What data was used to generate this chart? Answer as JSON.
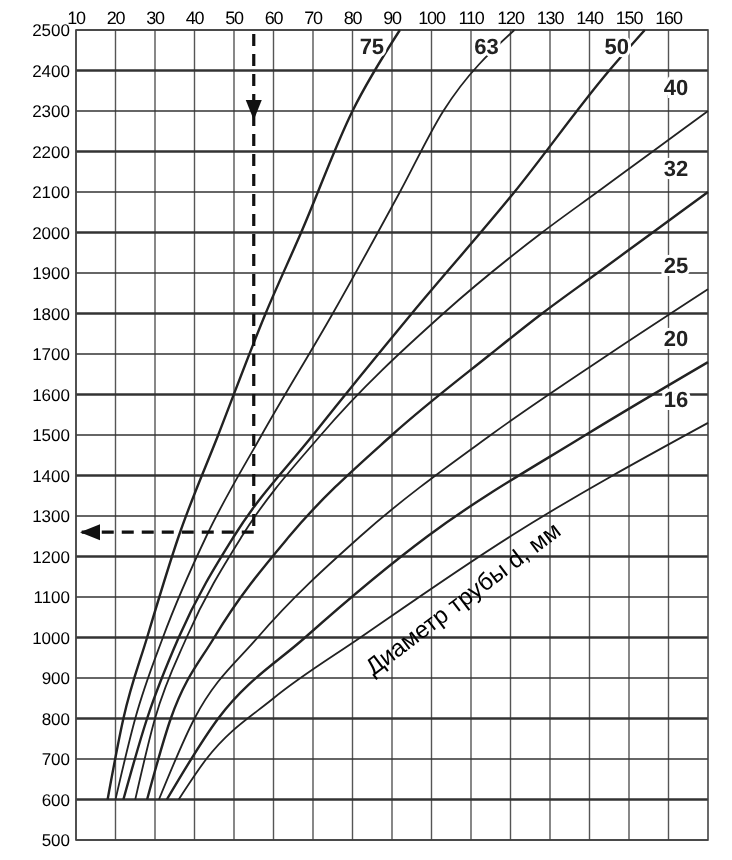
{
  "chart_data": {
    "type": "line",
    "annotations": [
      "Диаметр трубы d, мм"
    ],
    "xlim": [
      10,
      170
    ],
    "xticks": [
      10,
      20,
      30,
      40,
      50,
      60,
      70,
      80,
      90,
      100,
      110,
      120,
      130,
      140,
      150,
      160
    ],
    "ylim": [
      500,
      2500
    ],
    "yticks": [
      500,
      600,
      700,
      800,
      900,
      1000,
      1100,
      1200,
      1300,
      1400,
      1500,
      1600,
      1700,
      1800,
      1900,
      2000,
      2100,
      2200,
      2300,
      2400,
      2500
    ],
    "grid": true,
    "marker": "none",
    "ref_lines": [
      {
        "axis": "x",
        "value": 55,
        "line_style": "dashed"
      },
      {
        "axis": "y",
        "value": 1260,
        "line_style": "dashed"
      }
    ],
    "series": [
      {
        "name": "75",
        "color": "#222222",
        "x": [
          18,
          22,
          28,
          36,
          46,
          58,
          67,
          80,
          92
        ],
        "values": [
          600,
          800,
          1000,
          1250,
          1500,
          1800,
          2000,
          2300,
          2500
        ]
      },
      {
        "name": "63",
        "color": "#222222",
        "x": [
          20,
          25,
          32,
          43,
          57,
          75,
          92,
          103,
          121
        ],
        "values": [
          600,
          800,
          1000,
          1250,
          1500,
          1800,
          2100,
          2300,
          2500
        ]
      },
      {
        "name": "50",
        "color": "#222222",
        "x": [
          22,
          28,
          36,
          50,
          70,
          95,
          121,
          145,
          154
        ],
        "values": [
          600,
          800,
          1000,
          1250,
          1500,
          1800,
          2100,
          2400,
          2500
        ]
      },
      {
        "name": "40",
        "color": "#222222",
        "x": [
          25,
          30,
          38,
          52,
          72,
          103,
          128,
          142,
          156,
          170
        ],
        "values": [
          600,
          800,
          1000,
          1250,
          1500,
          1800,
          2000,
          2100,
          2200,
          2300
        ]
      },
      {
        "name": "32",
        "color": "#222222",
        "x": [
          28,
          34,
          45,
          64,
          90,
          115,
          128,
          142,
          156,
          170
        ],
        "values": [
          600,
          800,
          1000,
          1250,
          1500,
          1700,
          1800,
          1900,
          2000,
          2100
        ]
      },
      {
        "name": "25",
        "color": "#222222",
        "x": [
          31,
          40,
          56,
          82,
          115,
          145,
          170
        ],
        "values": [
          600,
          800,
          1000,
          1250,
          1500,
          1700,
          1860
        ]
      },
      {
        "name": "20",
        "color": "#222222",
        "x": [
          33,
          46,
          68,
          99,
          139,
          170
        ],
        "values": [
          600,
          800,
          1000,
          1250,
          1500,
          1680
        ]
      },
      {
        "name": "16",
        "color": "#222222",
        "x": [
          36,
          43,
          60,
          82,
          120,
          170
        ],
        "values": [
          600,
          700,
          850,
          1000,
          1250,
          1530
        ]
      }
    ]
  }
}
